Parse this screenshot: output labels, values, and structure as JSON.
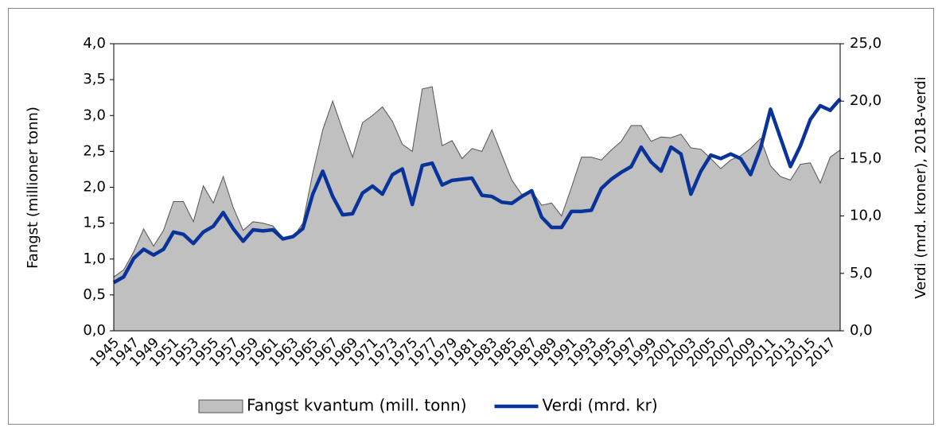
{
  "chart_data": {
    "type": "combo",
    "y_label": "Fangst (millioner tonn)",
    "y2_label": "Verdi (mrd. kroner), 2018-verdi",
    "legend": "bottom",
    "grid": false,
    "categories": [
      "1945",
      null,
      "1947",
      null,
      "1949",
      null,
      "1951",
      null,
      "1953",
      null,
      "1955",
      null,
      "1957",
      null,
      "1959",
      null,
      "1961",
      null,
      "1963",
      null,
      "1965",
      null,
      "1967",
      null,
      "1969",
      null,
      "1971",
      null,
      "1973",
      null,
      "1975",
      null,
      "1977",
      null,
      "1979",
      null,
      "1981",
      null,
      "1983",
      null,
      "1985",
      null,
      "1987",
      null,
      "1989",
      null,
      "1991",
      null,
      "1993",
      null,
      "1995",
      null,
      "1997",
      null,
      "1999",
      null,
      "2001",
      null,
      "2003",
      null,
      "2005",
      null,
      "2007",
      null,
      "2009",
      null,
      "2011",
      null,
      "2013",
      null,
      "2015",
      null,
      "2017",
      null
    ],
    "ylim": [
      0,
      4
    ],
    "yticks": [
      {
        "value": 0,
        "label": "0,0"
      },
      {
        "value": 0.5,
        "label": "0,5"
      },
      {
        "value": 1,
        "label": "1,0"
      },
      {
        "value": 1.5,
        "label": "1,5"
      },
      {
        "value": 2,
        "label": "2,0"
      },
      {
        "value": 2.5,
        "label": "2,5"
      },
      {
        "value": 3,
        "label": "3,0"
      },
      {
        "value": 3.5,
        "label": "3,5"
      },
      {
        "value": 4,
        "label": "4,0"
      }
    ],
    "y2lim": [
      0,
      25
    ],
    "y2ticks": [
      {
        "value": 0,
        "label": "0,0"
      },
      {
        "value": 5,
        "label": "5,0"
      },
      {
        "value": 10,
        "label": "10,0"
      },
      {
        "value": 15,
        "label": "15,0"
      },
      {
        "value": 20,
        "label": "20,0"
      },
      {
        "value": 25,
        "label": "25,0"
      }
    ],
    "series": [
      {
        "name": "Fangst kvantum (mill. tonn)",
        "type": "area",
        "color": "#c0c0c0",
        "values": [
          0.75,
          0.85,
          1.1,
          1.42,
          1.18,
          1.4,
          1.8,
          1.8,
          1.52,
          2.02,
          1.78,
          2.15,
          1.72,
          1.4,
          1.52,
          1.5,
          1.46,
          1.3,
          1.3,
          1.5,
          2.2,
          2.8,
          3.2,
          2.8,
          2.42,
          2.9,
          3.0,
          3.12,
          2.92,
          2.6,
          2.5,
          3.37,
          3.4,
          2.58,
          2.65,
          2.4,
          2.54,
          2.5,
          2.8,
          2.45,
          2.1,
          1.9,
          1.95,
          1.75,
          1.78,
          1.6,
          2.0,
          2.42,
          2.42,
          2.38,
          2.52,
          2.64,
          2.86,
          2.86,
          2.64,
          2.7,
          2.69,
          2.74,
          2.55,
          2.53,
          2.4,
          2.26,
          2.38,
          2.44,
          2.54,
          2.68,
          2.3,
          2.15,
          2.1,
          2.32,
          2.34,
          2.06,
          2.42,
          2.52
        ]
      },
      {
        "name": "Verdi (mrd. kr)",
        "type": "line",
        "axis": "y2",
        "color": "#0a3399",
        "values": [
          4.2,
          4.7,
          6.3,
          7.1,
          6.6,
          7.1,
          8.6,
          8.4,
          7.6,
          8.6,
          9.1,
          10.3,
          8.9,
          7.8,
          8.8,
          8.7,
          8.8,
          8.0,
          8.2,
          8.9,
          11.9,
          13.9,
          11.7,
          10.1,
          10.2,
          12.0,
          12.6,
          11.9,
          13.6,
          14.1,
          11.0,
          14.4,
          14.6,
          12.7,
          13.1,
          13.2,
          13.3,
          11.8,
          11.7,
          11.2,
          11.1,
          11.7,
          12.2,
          9.9,
          9.0,
          9.0,
          10.4,
          10.4,
          10.5,
          12.4,
          13.2,
          13.8,
          14.3,
          16.0,
          14.7,
          13.9,
          16.0,
          15.4,
          11.9,
          13.9,
          15.3,
          15.0,
          15.4,
          15.0,
          13.6,
          15.9,
          19.3,
          16.8,
          14.3,
          16.1,
          18.4,
          19.6,
          19.2,
          20.2
        ]
      }
    ]
  }
}
